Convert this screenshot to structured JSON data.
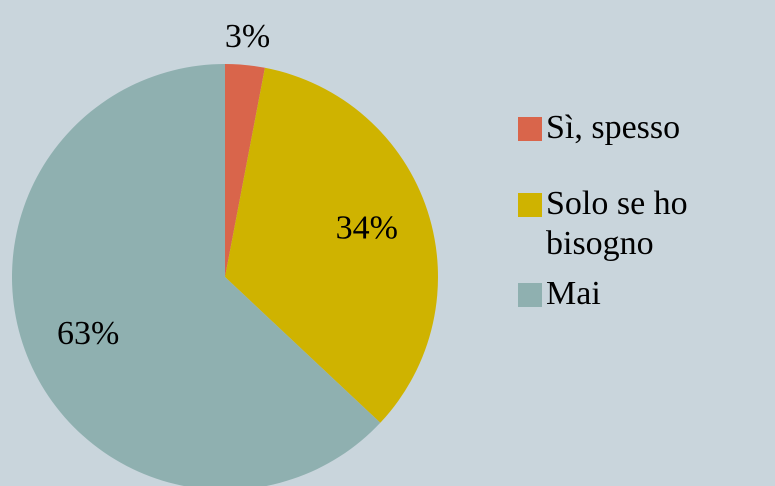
{
  "chart_data": {
    "type": "pie",
    "categories": [
      "Sì, spesso",
      "Solo se ho bisogno",
      "Mai"
    ],
    "values": [
      3,
      34,
      63
    ],
    "value_labels": [
      "3%",
      "34%",
      "63%"
    ],
    "colors": [
      "#d9654b",
      "#cfb300",
      "#8fb0b0"
    ],
    "legend": "right"
  }
}
